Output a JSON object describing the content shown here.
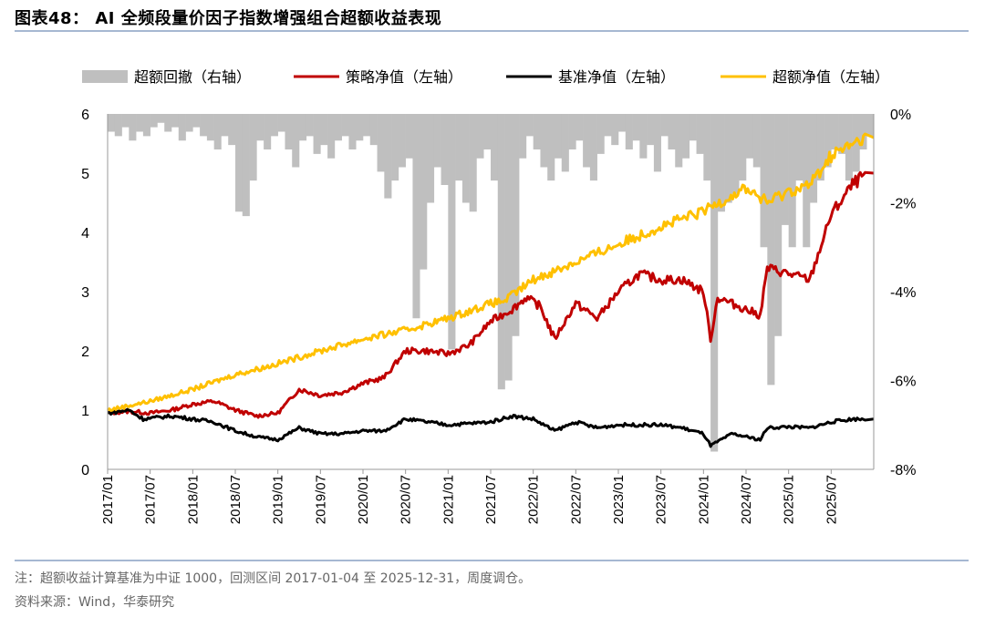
{
  "title": "图表48： AI 全频段量价因子指数增强组合超额收益表现",
  "note": "注：超额收益计算基准为中证 1000，回测区间 2017-01-04 至 2025-12-31，周度调仓。",
  "source": "资料来源：Wind，华泰研究",
  "chart_data": {
    "type": "line",
    "legend_position": "top",
    "legend": [
      {
        "label": "超额回撤（右轴）",
        "color": "#bfbfbf",
        "kind": "bar"
      },
      {
        "label": "策略净值（左轴）",
        "color": "#c00000",
        "kind": "line"
      },
      {
        "label": "基准净值（左轴）",
        "color": "#000000",
        "kind": "line"
      },
      {
        "label": "超额净值（左轴）",
        "color": "#ffc000",
        "kind": "line"
      }
    ],
    "x_ticks": [
      "2017/01",
      "2017/07",
      "2018/01",
      "2018/07",
      "2019/01",
      "2019/07",
      "2020/01",
      "2020/07",
      "2021/01",
      "2021/07",
      "2022/01",
      "2022/07",
      "2023/01",
      "2023/07",
      "2024/01",
      "2024/07",
      "2025/01",
      "2025/07"
    ],
    "x_range": [
      "2017/01",
      "2025/12"
    ],
    "y_left": {
      "range": [
        0,
        6
      ],
      "ticks": [
        "0",
        "1",
        "2",
        "3",
        "4",
        "5",
        "6"
      ]
    },
    "y_right": {
      "range": [
        -8,
        0
      ],
      "ticks": [
        "0%",
        "-2%",
        "-4%",
        "-6%",
        "-8%"
      ]
    },
    "grid": false,
    "series": [
      {
        "name": "策略净值（左轴）",
        "color": "#c00000",
        "points": [
          [
            "2017/01",
            0.95
          ],
          [
            "2017/04",
            0.98
          ],
          [
            "2017/07",
            0.95
          ],
          [
            "2017/10",
            1.0
          ],
          [
            "2018/01",
            1.1
          ],
          [
            "2018/04",
            1.15
          ],
          [
            "2018/07",
            1.0
          ],
          [
            "2018/10",
            0.9
          ],
          [
            "2019/01",
            0.95
          ],
          [
            "2019/04",
            1.35
          ],
          [
            "2019/07",
            1.25
          ],
          [
            "2019/10",
            1.3
          ],
          [
            "2020/01",
            1.45
          ],
          [
            "2020/04",
            1.55
          ],
          [
            "2020/07",
            2.0
          ],
          [
            "2020/10",
            2.0
          ],
          [
            "2021/01",
            1.95
          ],
          [
            "2021/04",
            2.1
          ],
          [
            "2021/07",
            2.5
          ],
          [
            "2021/10",
            2.7
          ],
          [
            "2021/12",
            2.9
          ],
          [
            "2022/02",
            2.75
          ],
          [
            "2022/04",
            2.2
          ],
          [
            "2022/07",
            2.8
          ],
          [
            "2022/10",
            2.55
          ],
          [
            "2023/01",
            3.0
          ],
          [
            "2023/04",
            3.3
          ],
          [
            "2023/07",
            3.2
          ],
          [
            "2023/10",
            3.2
          ],
          [
            "2024/01",
            3.0
          ],
          [
            "2024/02",
            2.2
          ],
          [
            "2024/03",
            2.9
          ],
          [
            "2024/06",
            2.75
          ],
          [
            "2024/09",
            2.6
          ],
          [
            "2024/10",
            3.4
          ],
          [
            "2025/01",
            3.3
          ],
          [
            "2025/04",
            3.2
          ],
          [
            "2025/07",
            4.3
          ],
          [
            "2025/10",
            4.8
          ],
          [
            "2025/12",
            5.0
          ]
        ]
      },
      {
        "name": "基准净值（左轴）",
        "color": "#000000",
        "points": [
          [
            "2017/01",
            0.95
          ],
          [
            "2017/04",
            1.0
          ],
          [
            "2017/06",
            0.85
          ],
          [
            "2017/10",
            0.9
          ],
          [
            "2018/01",
            0.85
          ],
          [
            "2018/04",
            0.8
          ],
          [
            "2018/07",
            0.65
          ],
          [
            "2018/10",
            0.55
          ],
          [
            "2019/01",
            0.5
          ],
          [
            "2019/04",
            0.7
          ],
          [
            "2019/07",
            0.6
          ],
          [
            "2019/10",
            0.6
          ],
          [
            "2020/01",
            0.65
          ],
          [
            "2020/04",
            0.65
          ],
          [
            "2020/07",
            0.85
          ],
          [
            "2020/10",
            0.8
          ],
          [
            "2021/01",
            0.75
          ],
          [
            "2021/07",
            0.8
          ],
          [
            "2021/10",
            0.9
          ],
          [
            "2022/01",
            0.85
          ],
          [
            "2022/04",
            0.65
          ],
          [
            "2022/07",
            0.8
          ],
          [
            "2022/10",
            0.7
          ],
          [
            "2023/01",
            0.75
          ],
          [
            "2023/07",
            0.75
          ],
          [
            "2023/10",
            0.7
          ],
          [
            "2024/01",
            0.6
          ],
          [
            "2024/02",
            0.4
          ],
          [
            "2024/05",
            0.6
          ],
          [
            "2024/09",
            0.5
          ],
          [
            "2024/10",
            0.7
          ],
          [
            "2025/01",
            0.72
          ],
          [
            "2025/04",
            0.7
          ],
          [
            "2025/07",
            0.8
          ],
          [
            "2025/10",
            0.85
          ],
          [
            "2025/12",
            0.85
          ]
        ]
      },
      {
        "name": "超额净值（左轴）",
        "color": "#ffc000",
        "points": [
          [
            "2017/01",
            1.0
          ],
          [
            "2017/07",
            1.15
          ],
          [
            "2018/01",
            1.35
          ],
          [
            "2018/07",
            1.6
          ],
          [
            "2018/12",
            1.75
          ],
          [
            "2019/07",
            2.0
          ],
          [
            "2020/01",
            2.2
          ],
          [
            "2020/07",
            2.35
          ],
          [
            "2021/01",
            2.55
          ],
          [
            "2021/07",
            2.8
          ],
          [
            "2021/09",
            2.85
          ],
          [
            "2022/01",
            3.2
          ],
          [
            "2022/07",
            3.5
          ],
          [
            "2023/01",
            3.8
          ],
          [
            "2023/07",
            4.1
          ],
          [
            "2024/01",
            4.35
          ],
          [
            "2024/03",
            4.5
          ],
          [
            "2024/07",
            4.75
          ],
          [
            "2024/10",
            4.5
          ],
          [
            "2025/01",
            4.7
          ],
          [
            "2025/04",
            4.8
          ],
          [
            "2025/07",
            5.3
          ],
          [
            "2025/12",
            5.6
          ]
        ]
      },
      {
        "name": "超额回撤（右轴）",
        "color": "#bfbfbf",
        "unit": "%",
        "monthly_from": "2017/01",
        "values": [
          -0.4,
          -0.5,
          -0.3,
          -0.6,
          -0.4,
          -0.5,
          -0.3,
          -0.2,
          -0.4,
          -0.3,
          -0.6,
          -0.4,
          -0.3,
          -0.5,
          -0.6,
          -0.8,
          -0.5,
          -0.7,
          -2.2,
          -2.3,
          -1.5,
          -0.6,
          -0.8,
          -0.5,
          -0.4,
          -0.8,
          -1.2,
          -0.6,
          -0.5,
          -0.9,
          -0.7,
          -1.0,
          -0.6,
          -0.5,
          -0.8,
          -0.6,
          -0.5,
          -0.7,
          -1.3,
          -1.9,
          -1.5,
          -1.2,
          -1.0,
          -4.6,
          -3.5,
          -2.0,
          -1.2,
          -1.6,
          -5.3,
          -1.5,
          -2.0,
          -2.2,
          -1.0,
          -0.8,
          -1.5,
          -6.2,
          -6.0,
          -5.0,
          -1.0,
          -0.5,
          -0.8,
          -1.2,
          -1.5,
          -1.0,
          -1.3,
          -0.8,
          -0.6,
          -1.2,
          -1.5,
          -0.9,
          -0.5,
          -0.7,
          -0.4,
          -0.8,
          -0.6,
          -1.0,
          -0.7,
          -1.3,
          -0.5,
          -0.8,
          -1.2,
          -1.0,
          -0.6,
          -0.9,
          -1.5,
          -7.6,
          -2.2,
          -2.0,
          -1.8,
          -1.5,
          -1.0,
          -1.2,
          -3.0,
          -6.1,
          -5.0,
          -2.5,
          -3.0,
          -1.5,
          -3.0,
          -2.0,
          -1.5,
          -1.2,
          -0.8,
          -0.9,
          -1.5,
          -1.3,
          -0.8,
          -0.5
        ]
      }
    ]
  }
}
